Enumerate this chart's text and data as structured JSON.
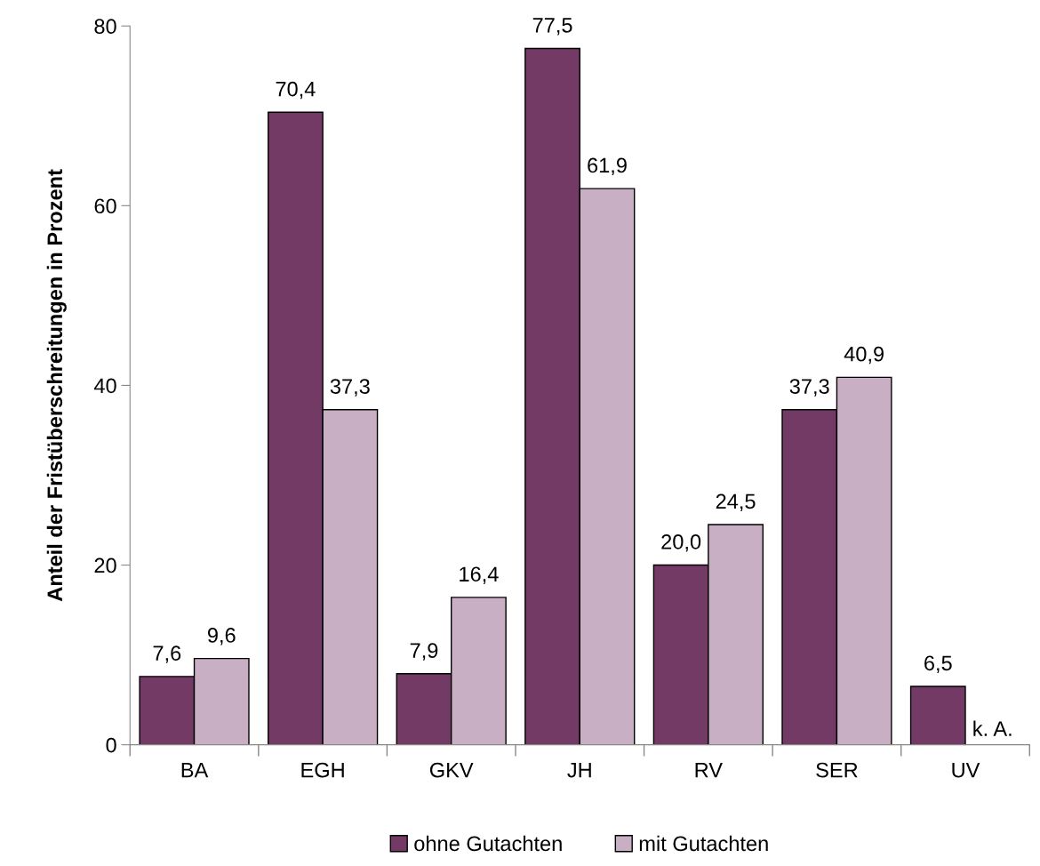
{
  "chart_data": {
    "type": "bar",
    "ylabel": "Anteil der Fristüberschreitungen in Prozent",
    "categories": [
      "BA",
      "EGH",
      "GKV",
      "JH",
      "RV",
      "SER",
      "UV"
    ],
    "series": [
      {
        "name": "ohne Gutachten",
        "color": "#733a66",
        "values": [
          7.6,
          70.4,
          7.9,
          77.5,
          20.0,
          37.3,
          6.5
        ],
        "value_labels": [
          "7,6",
          "70,4",
          "7,9",
          "77,5",
          "20,0",
          "37,3",
          "6,5"
        ]
      },
      {
        "name": "mit Gutachten",
        "color": "#c8afc4",
        "values": [
          9.6,
          37.3,
          16.4,
          61.9,
          24.5,
          40.9,
          null
        ],
        "value_labels": [
          "9,6",
          "37,3",
          "16,4",
          "61,9",
          "24,5",
          "40,9",
          "k. A."
        ]
      }
    ],
    "ylim": [
      0,
      80
    ],
    "yticks": [
      0,
      20,
      40,
      60,
      80
    ],
    "grid": false,
    "legend": "bottom"
  }
}
